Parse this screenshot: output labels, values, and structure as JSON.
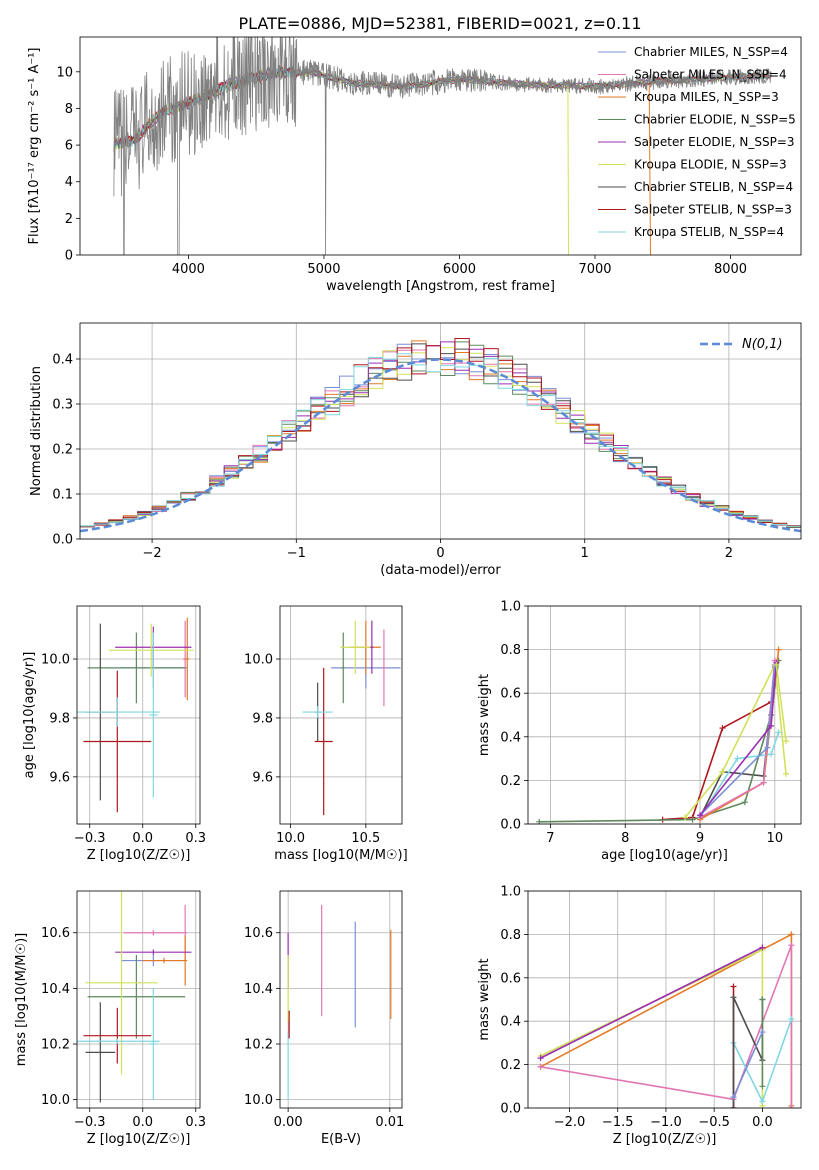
{
  "figure_title": "PLATE=0886, MJD=52381, FIBERID=0021, z=0.11",
  "colors": {
    "Chabrier MILES": "#7a8fd6",
    "Salpeter MILES": "#e277b4",
    "Kroupa MILES": "#e47a25",
    "Chabrier ELODIE": "#5e8a5e",
    "Salpeter ELODIE": "#9b2fb0",
    "Kroupa ELODIE": "#d1e15a",
    "Chabrier STELIB": "#4d4d4d",
    "Salpeter STELIB": "#b0161e",
    "Kroupa STELIB": "#7fd7e0",
    "data": "#808080",
    "gaussian": "#5b8ad6"
  },
  "chart_data": [
    {
      "id": "spectrum",
      "type": "line",
      "xlabel": "wavelength [Angstrom, rest frame]",
      "ylabel": "Flux [fλ10⁻¹⁷ erg cm⁻² s⁻¹ A⁻¹]",
      "xlim": [
        3200,
        8520
      ],
      "ylim": [
        0,
        11.9
      ],
      "xticks": [
        4000,
        5000,
        6000,
        7000,
        8000
      ],
      "yticks": [
        0,
        2,
        4,
        6,
        8,
        10
      ],
      "legend_position": "right",
      "legend": [
        "Chabrier MILES, N_SSP=4",
        "Salpeter MILES, N_SSP=4",
        "Kroupa MILES, N_SSP=3",
        "Chabrier ELODIE, N_SSP=5",
        "Salpeter ELODIE, N_SSP=3",
        "Kroupa ELODIE, N_SSP=3",
        "Chabrier STELIB, N_SSP=4",
        "Salpeter STELIB, N_SSP=3",
        "Kroupa STELIB, N_SSP=4"
      ],
      "x_range": [
        3450,
        8300
      ],
      "continuum_knots": [
        [
          3450,
          6.0
        ],
        [
          3600,
          6.3
        ],
        [
          3800,
          7.8
        ],
        [
          4000,
          8.3
        ],
        [
          4300,
          9.3
        ],
        [
          4600,
          9.9
        ],
        [
          4900,
          10.0
        ],
        [
          5200,
          9.4
        ],
        [
          5600,
          9.2
        ],
        [
          6000,
          9.6
        ],
        [
          6500,
          9.3
        ],
        [
          7000,
          9.2
        ],
        [
          7500,
          9.5
        ],
        [
          8000,
          9.7
        ],
        [
          8300,
          9.8
        ]
      ]
    },
    {
      "id": "residuals",
      "type": "bar",
      "xlabel": "(data-model)/error",
      "ylabel": "Normed distribution",
      "xlim": [
        -2.5,
        2.5
      ],
      "ylim": [
        0,
        0.48
      ],
      "xticks": [
        -2,
        -1,
        0,
        1,
        2
      ],
      "yticks": [
        0.0,
        0.1,
        0.2,
        0.3,
        0.4
      ],
      "bin_width": 0.1,
      "legend": [
        "N(0,1)"
      ],
      "legend_position": "top-right"
    },
    {
      "id": "age-Z",
      "type": "scatter",
      "xlabel": "Z [log10(Z/Z☉)]",
      "ylabel": "age  [log10(age/yr)]",
      "xlim": [
        -0.31,
        0.27
      ],
      "ylim": [
        9.44,
        10.18
      ],
      "xticks": [
        -0.25,
        0.0,
        0.25
      ],
      "yticks": [
        9.6,
        9.8,
        10.0
      ],
      "points": [
        {
          "x": 0.05,
          "xerr": 0.16,
          "y": 9.97,
          "yerr": 0.07,
          "color": "Chabrier MILES"
        },
        {
          "x": 0.2,
          "xerr": 0.01,
          "y": 10.0,
          "yerr": 0.13,
          "color": "Salpeter MILES"
        },
        {
          "x": 0.21,
          "xerr": 0.01,
          "y": 10.0,
          "yerr": 0.14,
          "color": "Kroupa MILES"
        },
        {
          "x": -0.03,
          "xerr": 0.23,
          "y": 9.97,
          "yerr": 0.12,
          "color": "Chabrier ELODIE"
        },
        {
          "x": 0.05,
          "xerr": 0.18,
          "y": 10.04,
          "yerr": 0.07,
          "color": "Salpeter ELODIE"
        },
        {
          "x": 0.04,
          "xerr": 0.2,
          "y": 10.03,
          "yerr": 0.09,
          "color": "Kroupa ELODIE"
        },
        {
          "x": -0.2,
          "xerr": 0.07,
          "y": 9.82,
          "yerr": 0.3,
          "color": "Chabrier STELIB"
        },
        {
          "x": -0.12,
          "xerr": 0.16,
          "y": 9.72,
          "yerr": 0.24,
          "color": "Salpeter STELIB"
        },
        {
          "x": -0.12,
          "xerr": 0.2,
          "y": 9.82,
          "yerr": 0.05,
          "color": "Kroupa STELIB"
        },
        {
          "x": 0.05,
          "xerr": 0.02,
          "y": 9.81,
          "yerr": 0.28,
          "color": "Kroupa STELIB"
        }
      ]
    },
    {
      "id": "age-mass",
      "type": "scatter",
      "xlabel": "mass [log10(M/M☉)]",
      "ylabel": "",
      "xlim": [
        9.93,
        10.74
      ],
      "ylim": [
        9.44,
        10.18
      ],
      "xticks": [
        10.0,
        10.5
      ],
      "yticks": [
        9.6,
        9.8,
        10.0
      ],
      "points": [
        {
          "x": 10.5,
          "xerr": 0.23,
          "y": 9.97,
          "yerr": 0.07,
          "color": "Chabrier MILES"
        },
        {
          "x": 10.62,
          "xerr": 0.01,
          "y": 9.97,
          "yerr": 0.13,
          "color": "Salpeter MILES"
        },
        {
          "x": 10.5,
          "xerr": 0.1,
          "y": 10.04,
          "yerr": 0.09,
          "color": "Kroupa MILES"
        },
        {
          "x": 10.35,
          "xerr": 0.01,
          "y": 9.97,
          "yerr": 0.12,
          "color": "Chabrier ELODIE"
        },
        {
          "x": 10.54,
          "xerr": 0.01,
          "y": 10.04,
          "yerr": 0.09,
          "color": "Salpeter ELODIE"
        },
        {
          "x": 10.43,
          "xerr": 0.1,
          "y": 10.04,
          "yerr": 0.09,
          "color": "Kroupa ELODIE"
        },
        {
          "x": 10.18,
          "xerr": 0.02,
          "y": 9.82,
          "yerr": 0.1,
          "color": "Chabrier STELIB"
        },
        {
          "x": 10.22,
          "xerr": 0.06,
          "y": 9.72,
          "yerr": 0.25,
          "color": "Salpeter STELIB"
        },
        {
          "x": 10.18,
          "xerr": 0.1,
          "y": 9.82,
          "yerr": 0.02,
          "color": "Kroupa STELIB"
        }
      ]
    },
    {
      "id": "massweight-age",
      "type": "line",
      "xlabel": "age  [log10(age/yr)]",
      "ylabel": "mass weight",
      "xlim": [
        6.7,
        10.35
      ],
      "ylim": [
        0,
        1.0
      ],
      "xticks": [
        7,
        8,
        9,
        10
      ],
      "yticks": [
        0.0,
        0.2,
        0.4,
        0.6,
        0.8,
        1.0
      ],
      "series": [
        {
          "color": "Salpeter STELIB",
          "x": [
            8.5,
            8.9,
            9.3,
            9.95
          ],
          "y": [
            0.02,
            0.03,
            0.44,
            0.56
          ]
        },
        {
          "color": "Chabrier STELIB",
          "x": [
            9.0,
            9.3,
            9.85,
            10.0
          ],
          "y": [
            0.03,
            0.24,
            0.22,
            0.72
          ]
        },
        {
          "color": "Chabrier ELODIE",
          "x": [
            6.85,
            8.9,
            9.6,
            9.95,
            10.05
          ],
          "y": [
            0.01,
            0.02,
            0.1,
            0.5,
            0.75
          ]
        },
        {
          "color": "Kroupa ELODIE",
          "x": [
            8.8,
            9.3,
            10.0,
            10.15
          ],
          "y": [
            0.03,
            0.24,
            0.73,
            0.23
          ]
        },
        {
          "color": "Kroupa STELIB",
          "x": [
            9.0,
            9.5,
            9.95,
            10.05
          ],
          "y": [
            0.03,
            0.3,
            0.32,
            0.42
          ]
        },
        {
          "color": "Kroupa MILES",
          "x": [
            9.0,
            9.85,
            10.05
          ],
          "y": [
            0.02,
            0.19,
            0.8
          ]
        },
        {
          "color": "Salpeter MILES",
          "x": [
            9.0,
            9.85,
            10.0
          ],
          "y": [
            0.03,
            0.19,
            0.75
          ]
        },
        {
          "color": "Chabrier MILES",
          "x": [
            9.0,
            9.9,
            10.0
          ],
          "y": [
            0.04,
            0.35,
            0.73
          ]
        },
        {
          "color": "Salpeter ELODIE",
          "x": [
            9.0,
            9.95,
            10.02
          ],
          "y": [
            0.04,
            0.45,
            0.74
          ]
        },
        {
          "color": "Kroupa ELODIE",
          "x": [
            10.02,
            10.15
          ],
          "y": [
            0.73,
            0.38
          ]
        }
      ]
    },
    {
      "id": "mass-Z",
      "type": "scatter",
      "xlabel": "Z [log10(Z/Z☉)]",
      "ylabel": "mass [log10(M/M☉)]",
      "xlim": [
        -0.31,
        0.27
      ],
      "ylim": [
        9.97,
        10.75
      ],
      "xticks": [
        -0.25,
        0.0,
        0.25
      ],
      "yticks": [
        10.0,
        10.2,
        10.4,
        10.6
      ],
      "points": [
        {
          "x": 0.05,
          "xerr": 0.15,
          "y": 10.5,
          "yerr": 0.02,
          "color": "Chabrier MILES"
        },
        {
          "x": 0.2,
          "xerr": 0.01,
          "y": 10.6,
          "yerr": 0.1,
          "color": "Salpeter MILES"
        },
        {
          "x": 0.05,
          "xerr": 0.14,
          "y": 10.6,
          "yerr": 0.01,
          "color": "Salpeter MILES"
        },
        {
          "x": 0.2,
          "xerr": 0.01,
          "y": 10.5,
          "yerr": 0.09,
          "color": "Kroupa MILES"
        },
        {
          "x": 0.1,
          "xerr": 0.1,
          "y": 10.5,
          "yerr": 0.01,
          "color": "Kroupa MILES"
        },
        {
          "x": -0.03,
          "xerr": 0.23,
          "y": 10.37,
          "yerr": 0.15,
          "color": "Chabrier ELODIE"
        },
        {
          "x": 0.05,
          "xerr": 0.18,
          "y": 10.53,
          "yerr": 0.01,
          "color": "Salpeter ELODIE"
        },
        {
          "x": -0.1,
          "xerr": 0.17,
          "y": 10.42,
          "yerr": 0.33,
          "color": "Kroupa ELODIE"
        },
        {
          "x": -0.2,
          "xerr": 0.07,
          "y": 10.17,
          "yerr": 0.18,
          "color": "Chabrier STELIB"
        },
        {
          "x": -0.12,
          "xerr": 0.16,
          "y": 10.23,
          "yerr": 0.1,
          "color": "Salpeter STELIB"
        },
        {
          "x": -0.12,
          "xerr": 0.2,
          "y": 10.21,
          "yerr": 0.01,
          "color": "Kroupa STELIB"
        },
        {
          "x": 0.05,
          "xerr": 0.02,
          "y": 10.2,
          "yerr": 0.2,
          "color": "Kroupa STELIB"
        }
      ]
    },
    {
      "id": "mass-EBV",
      "type": "scatter",
      "xlabel": "E(B-V)",
      "ylabel": "",
      "xlim": [
        -0.0008,
        0.0112
      ],
      "ylim": [
        9.97,
        10.75
      ],
      "xticks": [
        0.0,
        0.01
      ],
      "yticks": [
        10.0,
        10.2,
        10.4,
        10.6
      ],
      "points": [
        {
          "x": 0.0,
          "xerr": 0.0,
          "y": 10.5,
          "yerr": 0.1,
          "color": "Salpeter ELODIE"
        },
        {
          "x": 0.0,
          "xerr": 0.0,
          "y": 10.4,
          "yerr": 0.12,
          "color": "Kroupa ELODIE"
        },
        {
          "x": 0.0,
          "xerr": 0.0,
          "y": 10.12,
          "yerr": 0.12,
          "color": "Kroupa STELIB"
        },
        {
          "x": 0.0001,
          "xerr": 0.0,
          "y": 10.27,
          "yerr": 0.05,
          "color": "Salpeter STELIB"
        },
        {
          "x": 0.0033,
          "xerr": 0.0,
          "y": 10.5,
          "yerr": 0.2,
          "color": "Salpeter MILES"
        },
        {
          "x": 0.0066,
          "xerr": 0.0,
          "y": 10.45,
          "yerr": 0.19,
          "color": "Chabrier MILES"
        },
        {
          "x": 0.0101,
          "xerr": 0.0,
          "y": 10.45,
          "yerr": 0.16,
          "color": "Kroupa MILES"
        }
      ]
    },
    {
      "id": "massweight-Z",
      "type": "line",
      "xlabel": "Z [log10(Z/Z☉)]",
      "ylabel": "mass weight",
      "xlim": [
        -2.43,
        0.4
      ],
      "ylim": [
        0,
        1.0
      ],
      "xticks": [
        -2.0,
        -1.5,
        -1.0,
        -0.5,
        0.0
      ],
      "yticks": [
        0.0,
        0.2,
        0.4,
        0.6,
        0.8,
        1.0
      ],
      "series": [
        {
          "color": "Kroupa MILES",
          "x": [
            -2.3,
            0.0,
            0.3,
            0.3
          ],
          "y": [
            0.19,
            0.73,
            0.8,
            0.01
          ]
        },
        {
          "color": "Salpeter MILES",
          "x": [
            -2.3,
            -0.3,
            0.3,
            0.3
          ],
          "y": [
            0.19,
            0.04,
            0.75,
            0.0
          ]
        },
        {
          "color": "Kroupa ELODIE",
          "x": [
            -2.3,
            0.0,
            0.0
          ],
          "y": [
            0.24,
            0.73,
            0.01
          ]
        },
        {
          "color": "Salpeter ELODIE",
          "x": [
            -2.3,
            0.0
          ],
          "y": [
            0.23,
            0.74
          ]
        },
        {
          "color": "Kroupa STELIB",
          "x": [
            -0.3,
            0.0,
            0.3
          ],
          "y": [
            0.3,
            0.03,
            0.41
          ]
        },
        {
          "color": "Salpeter STELIB",
          "x": [
            -0.3,
            -0.3
          ],
          "y": [
            0.0,
            0.56
          ]
        },
        {
          "color": "Chabrier STELIB",
          "x": [
            -0.3,
            -0.3,
            0.0,
            0.0
          ],
          "y": [
            0.0,
            0.51,
            0.22,
            0.5
          ]
        },
        {
          "color": "Chabrier ELODIE",
          "x": [
            0.0,
            0.0
          ],
          "y": [
            0.1,
            0.5
          ]
        },
        {
          "color": "Chabrier MILES",
          "x": [
            -0.3,
            0.0
          ],
          "y": [
            0.05,
            0.35
          ]
        }
      ]
    }
  ]
}
